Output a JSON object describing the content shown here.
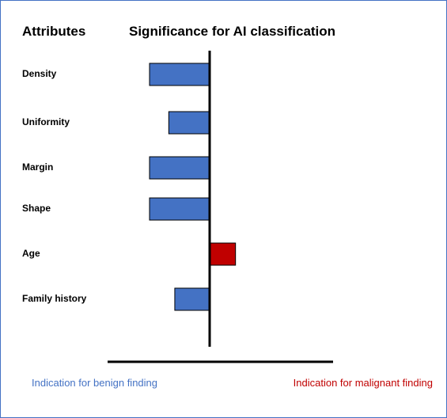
{
  "header": {
    "attributes_label": "Attributes",
    "title": "Significance for AI classification"
  },
  "legend": {
    "benign": {
      "label": "Indication for benign finding",
      "color": "#4472C4"
    },
    "malignant": {
      "label": "Indication for malignant finding",
      "color": "#C00000"
    }
  },
  "chart_data": {
    "type": "bar",
    "orientation": "horizontal",
    "categories": [
      "Density",
      "Uniformity",
      "Margin",
      "Shape",
      "Age",
      "Family history"
    ],
    "series": [
      {
        "values": [
          -1.0,
          -0.68,
          -1.0,
          -1.0,
          0.43,
          -0.58
        ]
      }
    ],
    "xlim": [
      -1.0,
      1.0
    ],
    "grid": false,
    "colors": {
      "negative": "#4472C4",
      "positive": "#C00000",
      "outline": "#000000"
    }
  }
}
